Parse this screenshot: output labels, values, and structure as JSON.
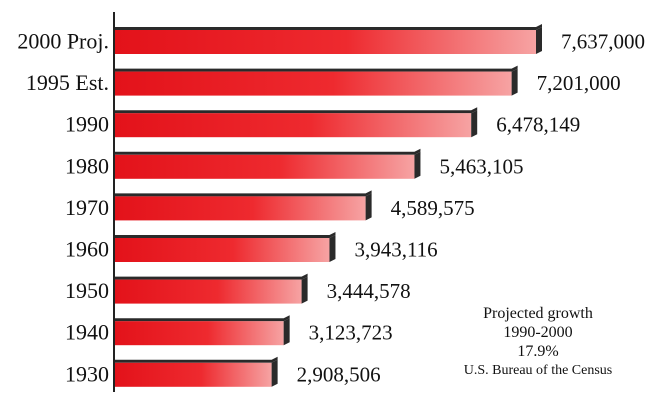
{
  "chart_data": {
    "type": "bar",
    "orientation": "horizontal",
    "categories": [
      "2000 Proj.",
      "1995 Est.",
      "1990",
      "1980",
      "1970",
      "1960",
      "1950",
      "1940",
      "1930"
    ],
    "values": [
      7637000,
      7201000,
      6478149,
      5463105,
      4589575,
      3943116,
      3444578,
      3123723,
      2908506
    ],
    "value_labels": [
      "7,637,000",
      "7,201,000",
      "6,478,149",
      "5,463,105",
      "4,589,575",
      "3,943,116",
      "3,444,578",
      "3,123,723",
      "2,908,506"
    ],
    "title": "",
    "xlabel": "",
    "ylabel": "",
    "xlim": [
      0,
      7637000
    ],
    "grid": false,
    "legend": "none",
    "bar_color": "#e8141b",
    "bar_shadow_color": "#2a2a2a"
  },
  "annotation": {
    "line1": "Projected growth",
    "line2": "1990-2000",
    "line3": "17.9%",
    "line4": "U.S. Bureau of the Census"
  }
}
